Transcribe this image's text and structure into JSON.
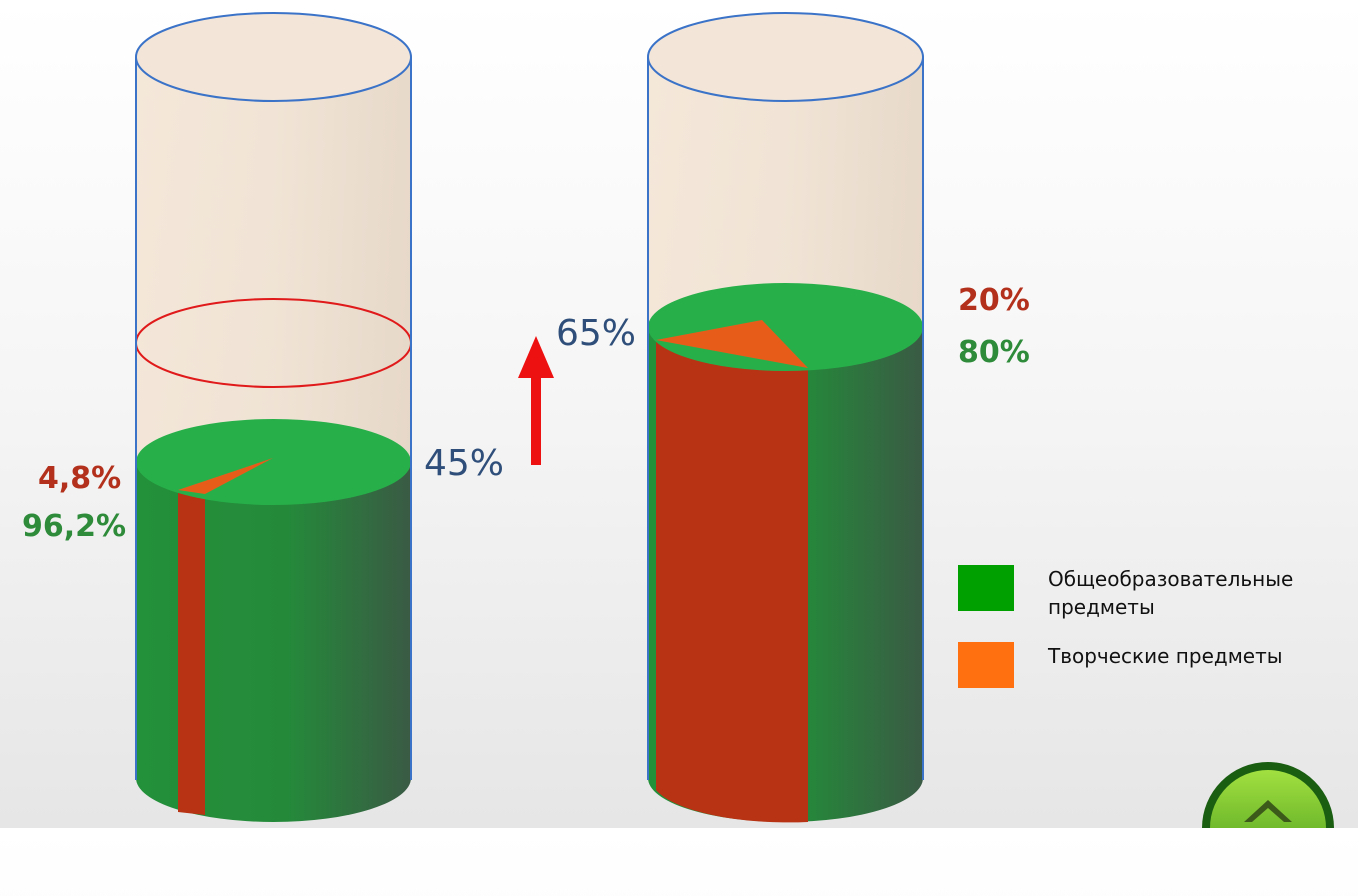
{
  "chart_data": {
    "type": "pie",
    "title": "",
    "series": [
      {
        "total_label": "45%",
        "level": 0.45,
        "slices": [
          {
            "label": "4,8%",
            "value": 4.8,
            "color": "#e85c1a"
          },
          {
            "label": "96,2%",
            "value": 96.2,
            "color": "#2bb04a"
          }
        ]
      },
      {
        "total_label": "65%",
        "level": 0.65,
        "slices": [
          {
            "label": "20%",
            "value": 20,
            "color": "#e85c1a"
          },
          {
            "label": "80%",
            "value": 80,
            "color": "#2bb04a"
          }
        ]
      }
    ],
    "legend": [
      {
        "label": "Общеобразовательные предметы",
        "color": "#00a000"
      },
      {
        "label": "Творческие предметы",
        "color": "#ff7010"
      }
    ],
    "legend_position": "right",
    "increase_arrow_color": "#ee1111"
  },
  "labels": {
    "left_red": "4,8%",
    "left_green": "96,2%",
    "left_total": "45%",
    "right_total": "65%",
    "right_red": "20%",
    "right_green": "80%",
    "legend_general_line1": "Общеобразовательные",
    "legend_general_line2": "предметы",
    "legend_creative": "Творческие предметы"
  },
  "icons": {
    "home_button": "home-icon"
  }
}
